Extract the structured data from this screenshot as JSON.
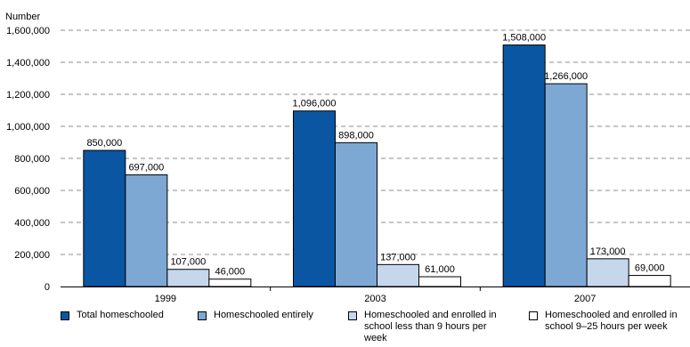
{
  "chart_data": {
    "type": "bar",
    "ylabel": "Number",
    "categories": [
      "1999",
      "2003",
      "2007"
    ],
    "series": [
      {
        "name": "Total homeschooled",
        "values": [
          850000,
          1096000,
          1508000
        ],
        "labels": [
          "850,000",
          "1,096,000",
          "1,508,000"
        ],
        "color": "#0b56a3"
      },
      {
        "name": "Homeschooled entirely",
        "values": [
          697000,
          898000,
          1266000
        ],
        "labels": [
          "697,000",
          "898,000",
          "1,266,000"
        ],
        "color": "#7ea8d4"
      },
      {
        "name": "Homeschooled and enrolled in school less than 9 hours per week",
        "values": [
          107000,
          137000,
          173000
        ],
        "labels": [
          "107,000",
          "137,000",
          "173,000"
        ],
        "color": "#c6d7ec"
      },
      {
        "name": "Homeschooled and enrolled in school 9–25 hours per week",
        "values": [
          46000,
          61000,
          69000
        ],
        "labels": [
          "46,000",
          "61,000",
          "69,000"
        ],
        "color": "#ffffff"
      }
    ],
    "ylim": [
      0,
      1600000
    ],
    "yticks": [
      0,
      200000,
      400000,
      600000,
      800000,
      1000000,
      1200000,
      1400000,
      1600000
    ],
    "ytick_labels": [
      "0",
      "200,000",
      "400,000",
      "600,000",
      "800,000",
      "1,000,000",
      "1,200,000",
      "1,400,000",
      "1,600,000"
    ],
    "grid": true,
    "legend_position": "bottom"
  }
}
